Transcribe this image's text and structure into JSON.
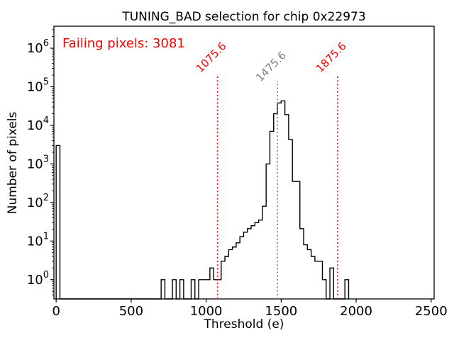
{
  "chart_data": {
    "type": "histogram-step",
    "title": "TUNING_BAD selection for chip 0x22973",
    "xlabel": "Threshold (e)",
    "ylabel": "Number of pixels",
    "annotation": "Failing pixels: 3081",
    "failing_pixels_count": 3081,
    "chip_id": "0x22973",
    "x_ticks": [
      0,
      500,
      1000,
      1500,
      2000,
      2500
    ],
    "y_tick_exponents": [
      0,
      1,
      2,
      3,
      4,
      5,
      6
    ],
    "xlim": [
      -15,
      2520
    ],
    "ylim_log10": [
      -0.5,
      6.57
    ],
    "y_scale": "log",
    "grid": "off",
    "legend": "none",
    "bin_width": 25,
    "bins": [
      [
        0,
        3000
      ],
      [
        700,
        1
      ],
      [
        775,
        1
      ],
      [
        825,
        1
      ],
      [
        900,
        1
      ],
      [
        950,
        1
      ],
      [
        975,
        1
      ],
      [
        1000,
        1
      ],
      [
        1025,
        2
      ],
      [
        1050,
        1
      ],
      [
        1075,
        1
      ],
      [
        1100,
        3
      ],
      [
        1125,
        4
      ],
      [
        1150,
        6
      ],
      [
        1175,
        7
      ],
      [
        1200,
        9
      ],
      [
        1225,
        13
      ],
      [
        1250,
        17
      ],
      [
        1275,
        21
      ],
      [
        1300,
        25
      ],
      [
        1325,
        30
      ],
      [
        1350,
        35
      ],
      [
        1375,
        80
      ],
      [
        1400,
        1000
      ],
      [
        1425,
        7000
      ],
      [
        1450,
        20000
      ],
      [
        1475,
        38000
      ],
      [
        1500,
        43000
      ],
      [
        1525,
        19000
      ],
      [
        1550,
        4300
      ],
      [
        1575,
        350
      ],
      [
        1600,
        350
      ],
      [
        1625,
        21
      ],
      [
        1650,
        8
      ],
      [
        1675,
        6
      ],
      [
        1700,
        4
      ],
      [
        1725,
        3
      ],
      [
        1750,
        3
      ],
      [
        1775,
        1
      ],
      [
        1825,
        2
      ],
      [
        1925,
        1
      ]
    ],
    "vlines": [
      {
        "x": 1075.6,
        "label": "1075.6",
        "color": "#ff0000"
      },
      {
        "x": 1475.6,
        "label": "1475.6",
        "color": "#808080"
      },
      {
        "x": 1875.6,
        "label": "1875.6",
        "color": "#ff0000"
      }
    ],
    "colors": {
      "hist_line": "#000000",
      "annotation": "#ff0000",
      "axis": "#000000",
      "background": "#ffffff"
    }
  }
}
